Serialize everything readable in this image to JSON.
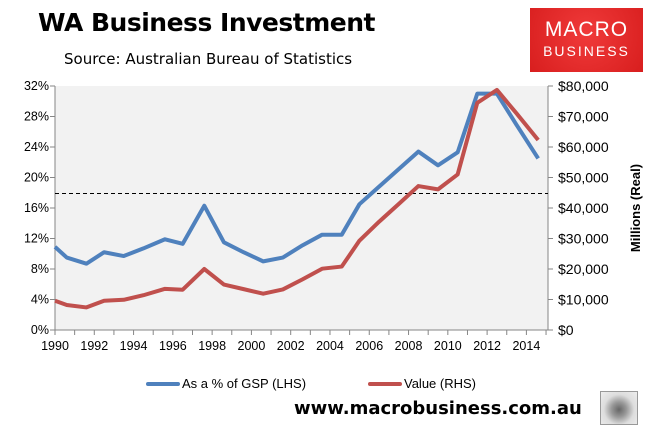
{
  "header": {
    "title": "WA Business Investment",
    "subtitle": "Source: Australian Bureau of Statistics"
  },
  "logo": {
    "line1": "MACRO",
    "line2": "BUSINESS",
    "color": "#e02424"
  },
  "footer": {
    "url": "www.macrobusiness.com.au",
    "wolf_icon": "wolf-logo"
  },
  "chart_data": {
    "type": "line",
    "title": "WA Business Investment",
    "xlabel": "",
    "ylabel_left": "",
    "ylabel_right": "Millions (Real)",
    "xlim": [
      1990,
      2015.1
    ],
    "x_ticks": [
      "1990",
      "1992",
      "1994",
      "1996",
      "1998",
      "2000",
      "2002",
      "2004",
      "2006",
      "2008",
      "2010",
      "2012",
      "2014"
    ],
    "ylim_left": [
      0,
      32
    ],
    "y_ticks_left": [
      "0%",
      "4%",
      "8%",
      "12%",
      "16%",
      "20%",
      "24%",
      "28%",
      "32%"
    ],
    "ylim_right": [
      0,
      80000
    ],
    "y_ticks_right": [
      "$0",
      "$10,000",
      "$20,000",
      "$30,000",
      "$40,000",
      "$50,000",
      "$60,000",
      "$70,000",
      "$80,000"
    ],
    "grid": false,
    "legend_position": "bottom",
    "reference_line": {
      "axis": "left",
      "value": 17.9,
      "style": "dashed",
      "color": "#000000"
    },
    "series": [
      {
        "name": "As a % of GSP (LHS)",
        "axis": "left",
        "color": "#4f81bd",
        "x": [
          1990.0,
          1990.6,
          1991.6,
          1992.5,
          1993.5,
          1994.5,
          1995.6,
          1996.5,
          1997.6,
          1998.6,
          1999.6,
          2000.6,
          2001.6,
          2002.6,
          2003.6,
          2004.6,
          2005.5,
          2006.5,
          2007.5,
          2008.5,
          2009.5,
          2010.5,
          2011.5,
          2012.5,
          2013.5,
          2014.6
        ],
        "values": [
          10.9,
          9.5,
          8.7,
          10.2,
          9.7,
          10.7,
          11.9,
          11.3,
          16.3,
          11.5,
          10.2,
          9.0,
          9.5,
          11.1,
          12.5,
          12.5,
          16.5,
          18.8,
          21.1,
          23.4,
          21.6,
          23.3,
          31.0,
          31.0,
          26.9,
          22.5
        ]
      },
      {
        "name": "Value (RHS)",
        "axis": "right",
        "color": "#c0504d",
        "x": [
          1990.0,
          1990.6,
          1991.6,
          1992.5,
          1993.5,
          1994.5,
          1995.6,
          1996.5,
          1997.6,
          1998.6,
          1999.6,
          2000.6,
          2001.6,
          2002.6,
          2003.6,
          2004.6,
          2005.5,
          2006.5,
          2007.5,
          2008.5,
          2009.5,
          2010.5,
          2011.5,
          2012.5,
          2013.5,
          2014.6
        ],
        "values": [
          9600,
          8200,
          7400,
          9600,
          9900,
          11400,
          13500,
          13200,
          20000,
          14900,
          13400,
          11900,
          13300,
          16600,
          20100,
          20800,
          29300,
          35500,
          41300,
          47200,
          46100,
          51000,
          74500,
          78700,
          71000,
          62300
        ]
      }
    ]
  }
}
